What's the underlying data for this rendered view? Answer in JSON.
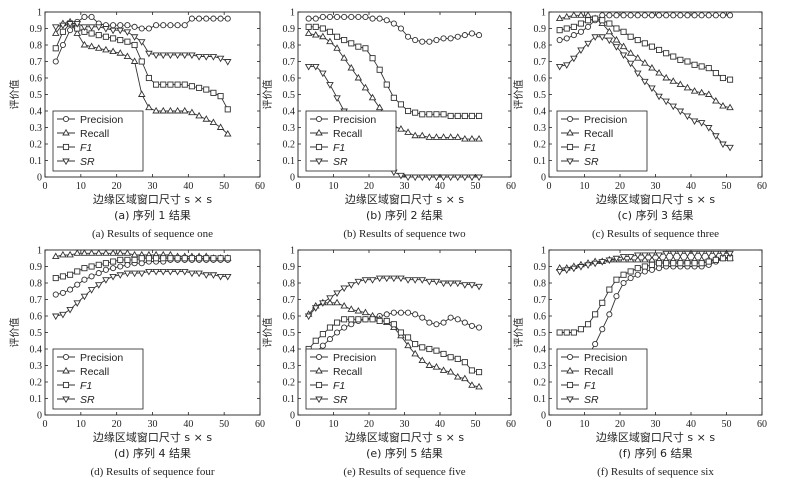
{
  "figure": {
    "y_axis_label": "评价值",
    "x_axis_label": "边缘区域窗口尺寸 s × s"
  },
  "legend": [
    "Precision",
    "Recall",
    "F1",
    "SR"
  ],
  "chart_data": [
    {
      "type": "line",
      "caption_cn": "(a) 序列 1 结果",
      "caption_en": "(a) Results of sequence one",
      "xlim": [
        0,
        60
      ],
      "ylim": [
        0,
        1
      ],
      "xticks": [
        0,
        10,
        20,
        30,
        40,
        50,
        60
      ],
      "yticks": [
        0,
        0.1,
        0.2,
        0.3,
        0.4,
        0.5,
        0.6,
        0.7,
        0.8,
        0.9,
        1
      ],
      "x": [
        3,
        5,
        7,
        9,
        11,
        13,
        15,
        17,
        19,
        21,
        23,
        25,
        27,
        29,
        31,
        33,
        35,
        37,
        39,
        41,
        43,
        45,
        47,
        49,
        51
      ],
      "series": [
        {
          "name": "Precision",
          "marker": "circle",
          "values": [
            0.7,
            0.8,
            0.89,
            0.94,
            0.97,
            0.97,
            0.93,
            0.92,
            0.92,
            0.92,
            0.92,
            0.91,
            0.9,
            0.9,
            0.92,
            0.92,
            0.92,
            0.92,
            0.92,
            0.96,
            0.96,
            0.96,
            0.96,
            0.96,
            0.96
          ]
        },
        {
          "name": "Recall",
          "marker": "triangle-up",
          "values": [
            0.87,
            0.93,
            0.94,
            0.87,
            0.8,
            0.79,
            0.78,
            0.77,
            0.76,
            0.75,
            0.73,
            0.7,
            0.5,
            0.42,
            0.4,
            0.4,
            0.4,
            0.4,
            0.4,
            0.39,
            0.37,
            0.35,
            0.33,
            0.3,
            0.26
          ]
        },
        {
          "name": "F1",
          "marker": "square",
          "values": [
            0.78,
            0.88,
            0.93,
            0.9,
            0.88,
            0.87,
            0.86,
            0.85,
            0.84,
            0.83,
            0.82,
            0.8,
            0.7,
            0.6,
            0.56,
            0.56,
            0.56,
            0.56,
            0.56,
            0.55,
            0.54,
            0.53,
            0.51,
            0.49,
            0.41
          ]
        },
        {
          "name": "SR",
          "marker": "triangle-down",
          "values": [
            0.91,
            0.92,
            0.93,
            0.93,
            0.91,
            0.91,
            0.91,
            0.9,
            0.89,
            0.89,
            0.88,
            0.85,
            0.82,
            0.75,
            0.74,
            0.74,
            0.74,
            0.74,
            0.74,
            0.74,
            0.73,
            0.73,
            0.73,
            0.72,
            0.7
          ]
        }
      ]
    },
    {
      "type": "line",
      "caption_cn": "(b) 序列 2 结果",
      "caption_en": "(b) Results of sequence two",
      "xlim": [
        0,
        60
      ],
      "ylim": [
        0,
        1
      ],
      "xticks": [
        0,
        10,
        20,
        30,
        40,
        50,
        60
      ],
      "yticks": [
        0,
        0.1,
        0.2,
        0.3,
        0.4,
        0.5,
        0.6,
        0.7,
        0.8,
        0.9,
        1
      ],
      "x": [
        3,
        5,
        7,
        9,
        11,
        13,
        15,
        17,
        19,
        21,
        23,
        25,
        27,
        29,
        31,
        33,
        35,
        37,
        39,
        41,
        43,
        45,
        47,
        49,
        51
      ],
      "series": [
        {
          "name": "Precision",
          "marker": "circle",
          "values": [
            0.96,
            0.96,
            0.97,
            0.97,
            0.97,
            0.97,
            0.97,
            0.97,
            0.97,
            0.96,
            0.96,
            0.95,
            0.93,
            0.9,
            0.85,
            0.83,
            0.82,
            0.82,
            0.83,
            0.84,
            0.84,
            0.85,
            0.86,
            0.87,
            0.86
          ]
        },
        {
          "name": "Recall",
          "marker": "triangle-up",
          "values": [
            0.87,
            0.86,
            0.85,
            0.82,
            0.78,
            0.72,
            0.66,
            0.6,
            0.54,
            0.48,
            0.42,
            0.36,
            0.31,
            0.29,
            0.27,
            0.25,
            0.25,
            0.24,
            0.24,
            0.24,
            0.24,
            0.24,
            0.23,
            0.23,
            0.23
          ]
        },
        {
          "name": "F1",
          "marker": "square",
          "values": [
            0.91,
            0.91,
            0.9,
            0.88,
            0.85,
            0.83,
            0.81,
            0.79,
            0.78,
            0.72,
            0.65,
            0.56,
            0.48,
            0.44,
            0.4,
            0.39,
            0.38,
            0.38,
            0.38,
            0.38,
            0.37,
            0.37,
            0.37,
            0.37,
            0.37
          ]
        },
        {
          "name": "SR",
          "marker": "triangle-down",
          "values": [
            0.67,
            0.67,
            0.63,
            0.56,
            0.48,
            0.4,
            0.33,
            0.27,
            0.21,
            0.16,
            0.1,
            0.06,
            0.03,
            0.01,
            0.0,
            0.0,
            0.0,
            0.0,
            0.0,
            0.0,
            0.0,
            0.0,
            0.0,
            0.0,
            0.0
          ]
        }
      ]
    },
    {
      "type": "line",
      "caption_cn": "(c) 序列 3 结果",
      "caption_en": "(c) Results of sequence three",
      "xlim": [
        0,
        60
      ],
      "ylim": [
        0,
        1
      ],
      "xticks": [
        0,
        10,
        20,
        30,
        40,
        50,
        60
      ],
      "yticks": [
        0,
        0.1,
        0.2,
        0.3,
        0.4,
        0.5,
        0.6,
        0.7,
        0.8,
        0.9,
        1
      ],
      "x": [
        3,
        5,
        7,
        9,
        11,
        13,
        15,
        17,
        19,
        21,
        23,
        25,
        27,
        29,
        31,
        33,
        35,
        37,
        39,
        41,
        43,
        45,
        47,
        49,
        51
      ],
      "series": [
        {
          "name": "Precision",
          "marker": "circle",
          "values": [
            0.83,
            0.84,
            0.86,
            0.88,
            0.91,
            0.95,
            0.98,
            0.98,
            0.98,
            0.98,
            0.98,
            0.98,
            0.98,
            0.98,
            0.98,
            0.98,
            0.98,
            0.98,
            0.98,
            0.98,
            0.98,
            0.98,
            0.98,
            0.98,
            0.98
          ]
        },
        {
          "name": "Recall",
          "marker": "triangle-up",
          "values": [
            0.96,
            0.97,
            0.98,
            0.98,
            0.98,
            0.96,
            0.93,
            0.88,
            0.83,
            0.79,
            0.75,
            0.72,
            0.69,
            0.66,
            0.63,
            0.6,
            0.58,
            0.56,
            0.54,
            0.52,
            0.51,
            0.5,
            0.46,
            0.43,
            0.42
          ]
        },
        {
          "name": "F1",
          "marker": "square",
          "values": [
            0.89,
            0.9,
            0.91,
            0.93,
            0.95,
            0.96,
            0.95,
            0.93,
            0.9,
            0.88,
            0.85,
            0.83,
            0.81,
            0.79,
            0.77,
            0.75,
            0.73,
            0.71,
            0.7,
            0.68,
            0.67,
            0.66,
            0.63,
            0.6,
            0.59
          ]
        },
        {
          "name": "SR",
          "marker": "triangle-down",
          "values": [
            0.67,
            0.68,
            0.72,
            0.77,
            0.81,
            0.85,
            0.85,
            0.83,
            0.79,
            0.74,
            0.69,
            0.63,
            0.58,
            0.54,
            0.49,
            0.46,
            0.43,
            0.4,
            0.37,
            0.34,
            0.33,
            0.3,
            0.25,
            0.2,
            0.18
          ]
        }
      ]
    },
    {
      "type": "line",
      "caption_cn": "(d) 序列 4 结果",
      "caption_en": "(d) Results of sequence four",
      "xlim": [
        0,
        60
      ],
      "ylim": [
        0,
        1
      ],
      "xticks": [
        0,
        10,
        20,
        30,
        40,
        50,
        60
      ],
      "yticks": [
        0,
        0.1,
        0.2,
        0.3,
        0.4,
        0.5,
        0.6,
        0.7,
        0.8,
        0.9,
        1
      ],
      "x": [
        3,
        5,
        7,
        9,
        11,
        13,
        15,
        17,
        19,
        21,
        23,
        25,
        27,
        29,
        31,
        33,
        35,
        37,
        39,
        41,
        43,
        45,
        47,
        49,
        51
      ],
      "series": [
        {
          "name": "Precision",
          "marker": "circle",
          "values": [
            0.73,
            0.74,
            0.76,
            0.79,
            0.82,
            0.84,
            0.86,
            0.88,
            0.89,
            0.9,
            0.91,
            0.92,
            0.92,
            0.93,
            0.93,
            0.93,
            0.94,
            0.94,
            0.94,
            0.94,
            0.94,
            0.94,
            0.94,
            0.94,
            0.94
          ]
        },
        {
          "name": "Recall",
          "marker": "triangle-up",
          "values": [
            0.96,
            0.97,
            0.97,
            0.98,
            0.98,
            0.98,
            0.98,
            0.98,
            0.98,
            0.98,
            0.98,
            0.97,
            0.97,
            0.97,
            0.97,
            0.97,
            0.97,
            0.96,
            0.96,
            0.96,
            0.96,
            0.96,
            0.95,
            0.95,
            0.95
          ]
        },
        {
          "name": "F1",
          "marker": "square",
          "values": [
            0.83,
            0.84,
            0.85,
            0.87,
            0.89,
            0.9,
            0.91,
            0.92,
            0.93,
            0.94,
            0.94,
            0.94,
            0.95,
            0.95,
            0.95,
            0.95,
            0.95,
            0.95,
            0.95,
            0.95,
            0.95,
            0.95,
            0.95,
            0.95,
            0.95
          ]
        },
        {
          "name": "SR",
          "marker": "triangle-down",
          "values": [
            0.6,
            0.61,
            0.64,
            0.68,
            0.72,
            0.76,
            0.79,
            0.82,
            0.84,
            0.85,
            0.86,
            0.86,
            0.86,
            0.87,
            0.87,
            0.87,
            0.87,
            0.87,
            0.87,
            0.86,
            0.86,
            0.85,
            0.85,
            0.84,
            0.84
          ]
        }
      ]
    },
    {
      "type": "line",
      "caption_cn": "(e) 序列 5 结果",
      "caption_en": "(e) Results of sequence five",
      "xlim": [
        0,
        60
      ],
      "ylim": [
        0,
        1
      ],
      "xticks": [
        0,
        10,
        20,
        30,
        40,
        50,
        60
      ],
      "yticks": [
        0,
        0.1,
        0.2,
        0.3,
        0.4,
        0.5,
        0.6,
        0.7,
        0.8,
        0.9,
        1
      ],
      "x": [
        3,
        5,
        7,
        9,
        11,
        13,
        15,
        17,
        19,
        21,
        23,
        25,
        27,
        29,
        31,
        33,
        35,
        37,
        39,
        41,
        43,
        45,
        47,
        49,
        51
      ],
      "series": [
        {
          "name": "Precision",
          "marker": "circle",
          "values": [
            0.32,
            0.38,
            0.42,
            0.46,
            0.5,
            0.53,
            0.55,
            0.57,
            0.58,
            0.59,
            0.6,
            0.61,
            0.62,
            0.62,
            0.62,
            0.61,
            0.59,
            0.56,
            0.55,
            0.56,
            0.59,
            0.58,
            0.56,
            0.54,
            0.53
          ]
        },
        {
          "name": "Recall",
          "marker": "triangle-up",
          "values": [
            0.61,
            0.66,
            0.68,
            0.68,
            0.68,
            0.66,
            0.64,
            0.63,
            0.62,
            0.6,
            0.58,
            0.56,
            0.53,
            0.48,
            0.42,
            0.37,
            0.33,
            0.3,
            0.29,
            0.27,
            0.26,
            0.23,
            0.22,
            0.18,
            0.17
          ]
        },
        {
          "name": "F1",
          "marker": "square",
          "values": [
            0.4,
            0.45,
            0.49,
            0.53,
            0.56,
            0.58,
            0.58,
            0.58,
            0.58,
            0.58,
            0.57,
            0.57,
            0.55,
            0.5,
            0.47,
            0.43,
            0.41,
            0.4,
            0.39,
            0.37,
            0.35,
            0.34,
            0.32,
            0.27,
            0.26
          ]
        },
        {
          "name": "SR",
          "marker": "triangle-down",
          "values": [
            0.6,
            0.65,
            0.68,
            0.71,
            0.74,
            0.77,
            0.79,
            0.81,
            0.82,
            0.82,
            0.83,
            0.83,
            0.83,
            0.83,
            0.82,
            0.82,
            0.82,
            0.81,
            0.81,
            0.8,
            0.8,
            0.8,
            0.79,
            0.79,
            0.78
          ]
        }
      ]
    },
    {
      "type": "line",
      "caption_cn": "(f) 序列 6 结果",
      "caption_en": "(f) Results of sequence six",
      "xlim": [
        0,
        60
      ],
      "ylim": [
        0,
        1
      ],
      "xticks": [
        0,
        10,
        20,
        30,
        40,
        50,
        60
      ],
      "yticks": [
        0,
        0.1,
        0.2,
        0.3,
        0.4,
        0.5,
        0.6,
        0.7,
        0.8,
        0.9,
        1
      ],
      "x": [
        3,
        5,
        7,
        9,
        11,
        13,
        15,
        17,
        19,
        21,
        23,
        25,
        27,
        29,
        31,
        33,
        35,
        37,
        39,
        41,
        43,
        45,
        47,
        49,
        51
      ],
      "series": [
        {
          "name": "Precision",
          "marker": "circle",
          "values": [
            0.3,
            0.3,
            0.31,
            0.33,
            0.36,
            0.43,
            0.52,
            0.61,
            0.72,
            0.8,
            0.83,
            0.85,
            0.87,
            0.88,
            0.89,
            0.9,
            0.9,
            0.9,
            0.9,
            0.9,
            0.9,
            0.91,
            0.93,
            0.95,
            0.96
          ]
        },
        {
          "name": "Recall",
          "marker": "triangle-up",
          "values": [
            0.89,
            0.89,
            0.9,
            0.91,
            0.92,
            0.93,
            0.93,
            0.94,
            0.94,
            0.94,
            0.94,
            0.94,
            0.94,
            0.94,
            0.94,
            0.94,
            0.94,
            0.94,
            0.94,
            0.94,
            0.94,
            0.94,
            0.95,
            0.95,
            0.95
          ]
        },
        {
          "name": "F1",
          "marker": "square",
          "values": [
            0.5,
            0.5,
            0.5,
            0.52,
            0.55,
            0.61,
            0.68,
            0.76,
            0.82,
            0.85,
            0.87,
            0.89,
            0.9,
            0.91,
            0.92,
            0.92,
            0.92,
            0.92,
            0.92,
            0.92,
            0.92,
            0.93,
            0.94,
            0.95,
            0.95
          ]
        },
        {
          "name": "SR",
          "marker": "triangle-down",
          "values": [
            0.87,
            0.88,
            0.89,
            0.9,
            0.91,
            0.92,
            0.93,
            0.94,
            0.95,
            0.96,
            0.96,
            0.97,
            0.97,
            0.97,
            0.97,
            0.98,
            0.98,
            0.98,
            0.98,
            0.98,
            0.98,
            0.98,
            0.98,
            0.98,
            0.98
          ]
        }
      ]
    }
  ]
}
